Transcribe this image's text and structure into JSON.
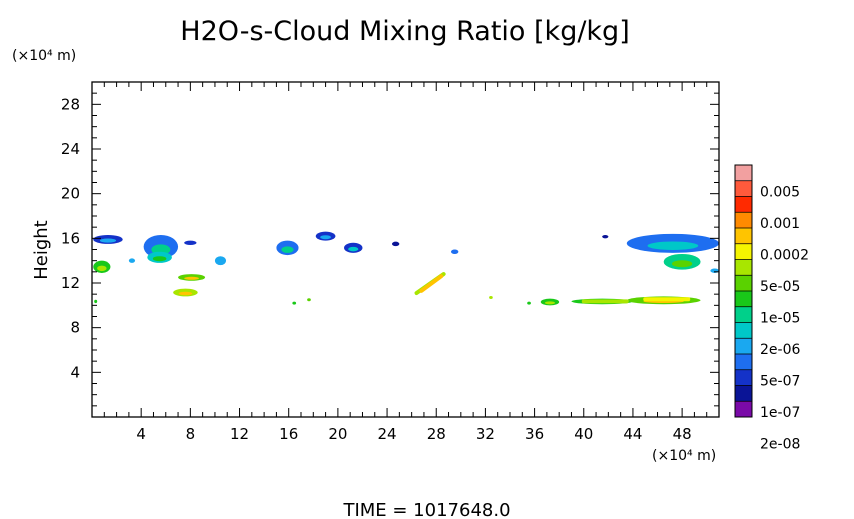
{
  "chart_data": {
    "type": "heatmap",
    "title": "H2O-s-Cloud Mixing Ratio [kg/kg]",
    "ylabel": "Height",
    "y_unit": "(×10⁴ m)",
    "x_unit": "(×10⁴ m)",
    "xlim": [
      0,
      51
    ],
    "ylim": [
      0,
      30
    ],
    "x_ticks": [
      "4",
      "8",
      "12",
      "16",
      "20",
      "24",
      "28",
      "32",
      "36",
      "40",
      "44",
      "48"
    ],
    "y_ticks": [
      "4",
      "8",
      "12",
      "16",
      "20",
      "24",
      "28"
    ],
    "time_label": "TIME = 1017648.0",
    "colorbar": {
      "labels": [
        "0.005",
        "0.001",
        "0.0002",
        "5e-05",
        "1e-05",
        "2e-06",
        "5e-07",
        "1e-07",
        "2e-08"
      ],
      "colors": [
        "#f2a0a0",
        "#ff5a3c",
        "#ff2a00",
        "#ff8a00",
        "#ffc400",
        "#f5f500",
        "#a8e600",
        "#5ad200",
        "#19c819",
        "#00d08a",
        "#00c8c8",
        "#1aa8f0",
        "#1e6ef0",
        "#1432c8",
        "#0a1496",
        "#7a0aa8"
      ]
    },
    "regions": [
      {
        "x": [
          0.1,
          2.5
        ],
        "y": [
          15.5,
          16.3
        ],
        "level": 0.14
      },
      {
        "x": [
          0.1,
          1.5
        ],
        "y": [
          12.9,
          14.0
        ],
        "level": 0.45
      },
      {
        "x": [
          0.2,
          0.4
        ],
        "y": [
          10.2,
          10.5
        ],
        "level": 0.5
      },
      {
        "x": [
          3.0,
          3.5
        ],
        "y": [
          13.8,
          14.2
        ],
        "level": 0.25
      },
      {
        "x": [
          4.2,
          7.0
        ],
        "y": [
          14.2,
          16.3
        ],
        "level": 0.22
      },
      {
        "x": [
          4.5,
          6.5
        ],
        "y": [
          13.8,
          14.8
        ],
        "level": 0.35
      },
      {
        "x": [
          7.5,
          8.5
        ],
        "y": [
          15.4,
          15.8
        ],
        "level": 0.12
      },
      {
        "x": [
          7.0,
          9.2
        ],
        "y": [
          12.2,
          12.8
        ],
        "level": 0.55
      },
      {
        "x": [
          6.6,
          8.6
        ],
        "y": [
          10.8,
          11.5
        ],
        "level": 0.58
      },
      {
        "x": [
          10.0,
          10.9
        ],
        "y": [
          13.6,
          14.4
        ],
        "level": 0.3
      },
      {
        "x": [
          15.0,
          16.8
        ],
        "y": [
          14.5,
          15.8
        ],
        "level": 0.22
      },
      {
        "x": [
          18.2,
          19.8
        ],
        "y": [
          15.8,
          16.6
        ],
        "level": 0.12
      },
      {
        "x": [
          20.5,
          22.0
        ],
        "y": [
          14.7,
          15.6
        ],
        "level": 0.16
      },
      {
        "x": [
          24.4,
          25.0
        ],
        "y": [
          15.3,
          15.7
        ],
        "level": 0.1
      },
      {
        "x": [
          29.2,
          29.8
        ],
        "y": [
          14.6,
          15.0
        ],
        "level": 0.2
      },
      {
        "x": [
          16.3,
          16.6
        ],
        "y": [
          10.1,
          10.3
        ],
        "level": 0.5
      },
      {
        "x": [
          17.5,
          17.8
        ],
        "y": [
          10.4,
          10.6
        ],
        "level": 0.55
      },
      {
        "x": [
          32.3,
          32.6
        ],
        "y": [
          10.6,
          10.8
        ],
        "level": 0.6
      },
      {
        "x": [
          35.4,
          35.7
        ],
        "y": [
          10.1,
          10.3
        ],
        "level": 0.5
      },
      {
        "x": [
          36.5,
          38.0
        ],
        "y": [
          10.0,
          10.6
        ],
        "level": 0.45
      },
      {
        "x": [
          39.0,
          44.0
        ],
        "y": [
          10.1,
          10.6
        ],
        "level": 0.5
      },
      {
        "x": [
          43.5,
          49.5
        ],
        "y": [
          10.1,
          10.8
        ],
        "level": 0.55
      },
      {
        "x": [
          41.5,
          42.0
        ],
        "y": [
          16.0,
          16.3
        ],
        "level": 0.1
      },
      {
        "x": [
          43.5,
          51.0
        ],
        "y": [
          14.7,
          16.4
        ],
        "level": 0.18
      },
      {
        "x": [
          46.5,
          49.5
        ],
        "y": [
          13.2,
          14.6
        ],
        "level": 0.4
      },
      {
        "x": [
          50.3,
          51.0
        ],
        "y": [
          12.9,
          13.3
        ],
        "level": 0.3
      }
    ],
    "streaks": [
      {
        "x1": 26.4,
        "y1": 11.1,
        "x2": 28.6,
        "y2": 12.8,
        "level": 0.62
      },
      {
        "x1": 26.8,
        "y1": 11.3,
        "x2": 28.4,
        "y2": 12.6,
        "level": 0.72
      },
      {
        "x1": 40.0,
        "y1": 10.35,
        "x2": 43.5,
        "y2": 10.35,
        "level": 0.62
      },
      {
        "x1": 45.0,
        "y1": 10.55,
        "x2": 48.5,
        "y2": 10.55,
        "level": 0.68
      }
    ]
  }
}
